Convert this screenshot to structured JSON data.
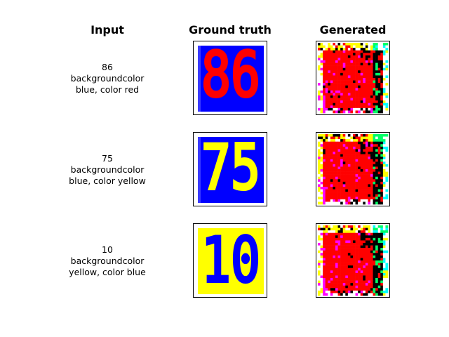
{
  "headers": {
    "input": "Input",
    "ground_truth": "Ground truth",
    "generated": "Generated"
  },
  "rows": [
    {
      "number": "86",
      "line2": "backgroundcolor",
      "line3": "blue, color red",
      "gt_background": "#0000ff",
      "gt_color": "#ff0000"
    },
    {
      "number": "75",
      "line2": "backgroundcolor",
      "line3": "blue, color yellow",
      "gt_background": "#0000ff",
      "gt_color": "#ffff00"
    },
    {
      "number": "10",
      "line2": "backgroundcolor",
      "line3": "yellow, color blue",
      "gt_background": "#ffff00",
      "gt_color": "#0000ff"
    }
  ],
  "generated_palette": {
    "main": "#ff0000",
    "dark": "#000000",
    "yellow": "#ffff00",
    "green": "#00ff66",
    "cyan": "#00ffff",
    "magenta": "#ff00ff",
    "white": "#ffffff"
  }
}
